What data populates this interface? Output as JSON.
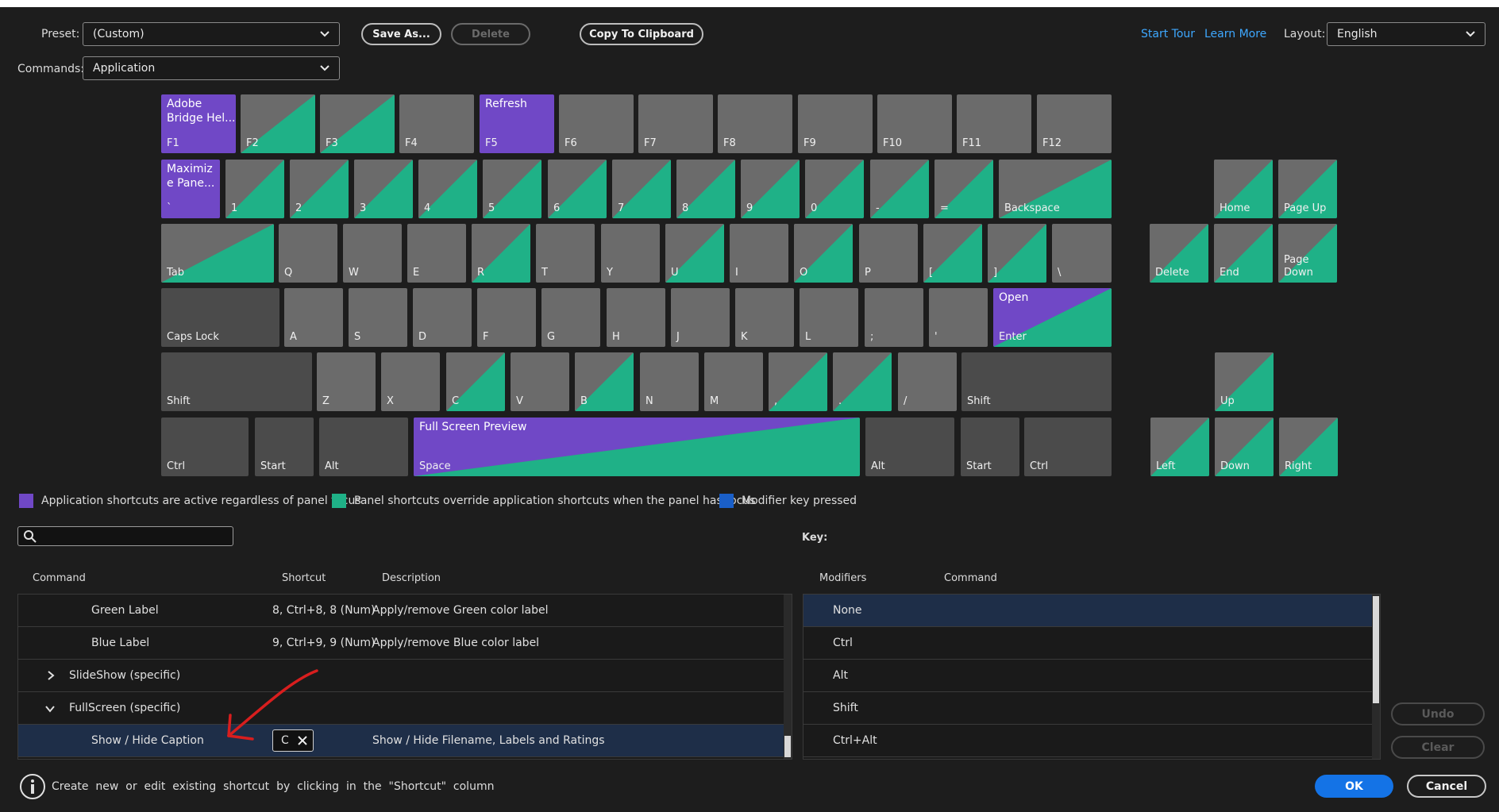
{
  "header": {
    "preset_label": "Preset:",
    "preset_value": "(Custom)",
    "save_as": "Save As...",
    "delete": "Delete",
    "copy_clipboard": "Copy To Clipboard",
    "commands_label": "Commands:",
    "commands_value": "Application",
    "start_tour": "Start Tour",
    "learn_more": "Learn More",
    "layout_label": "Layout:",
    "layout_value": "English"
  },
  "colors": {
    "app": "#7048c6",
    "panel": "#1fb187",
    "key": "#6b6b6b",
    "key_dark": "#4b4b4b",
    "modifier": "#1a5fc8",
    "link": "#3ea8ff",
    "ok": "#1473e6"
  },
  "keys": [
    {
      "name": "f1",
      "label": "F1",
      "top": "Adobe\nBridge Hel...",
      "state": "app"
    },
    {
      "name": "f2",
      "label": "F2",
      "state": "panel"
    },
    {
      "name": "f3",
      "label": "F3",
      "state": "panel"
    },
    {
      "name": "f4",
      "label": "F4",
      "state": "plain"
    },
    {
      "name": "f5",
      "label": "F5",
      "top": "Refresh",
      "state": "app"
    },
    {
      "name": "f6",
      "label": "F6",
      "state": "plain"
    },
    {
      "name": "f7",
      "label": "F7",
      "state": "plain"
    },
    {
      "name": "f8",
      "label": "F8",
      "state": "plain"
    },
    {
      "name": "f9",
      "label": "F9",
      "state": "plain"
    },
    {
      "name": "f10",
      "label": "F10",
      "state": "plain"
    },
    {
      "name": "f11",
      "label": "F11",
      "state": "plain"
    },
    {
      "name": "f12",
      "label": "F12",
      "state": "plain"
    },
    {
      "name": "backtick",
      "label": "`",
      "top": "Maximiz\ne Pane...",
      "state": "app"
    },
    {
      "name": "1",
      "label": "1",
      "state": "panel"
    },
    {
      "name": "2",
      "label": "2",
      "state": "panel"
    },
    {
      "name": "3",
      "label": "3",
      "state": "panel"
    },
    {
      "name": "4",
      "label": "4",
      "state": "panel"
    },
    {
      "name": "5",
      "label": "5",
      "state": "panel"
    },
    {
      "name": "6",
      "label": "6",
      "state": "panel"
    },
    {
      "name": "7",
      "label": "7",
      "state": "panel"
    },
    {
      "name": "8",
      "label": "8",
      "state": "panel"
    },
    {
      "name": "9",
      "label": "9",
      "state": "panel"
    },
    {
      "name": "0",
      "label": "0",
      "state": "panel"
    },
    {
      "name": "minus",
      "label": "-",
      "state": "panel"
    },
    {
      "name": "equals",
      "label": "=",
      "state": "panel"
    },
    {
      "name": "backspace",
      "label": "Backspace",
      "state": "panel"
    },
    {
      "name": "home",
      "label": "Home",
      "state": "panel"
    },
    {
      "name": "pageup",
      "label": "Page Up",
      "state": "panel"
    },
    {
      "name": "tab",
      "label": "Tab",
      "state": "panel"
    },
    {
      "name": "q",
      "label": "Q",
      "state": "plain"
    },
    {
      "name": "w",
      "label": "W",
      "state": "plain"
    },
    {
      "name": "e",
      "label": "E",
      "state": "plain"
    },
    {
      "name": "r",
      "label": "R",
      "state": "panel"
    },
    {
      "name": "t",
      "label": "T",
      "state": "plain"
    },
    {
      "name": "y",
      "label": "Y",
      "state": "plain"
    },
    {
      "name": "u",
      "label": "U",
      "state": "panel"
    },
    {
      "name": "i",
      "label": "I",
      "state": "plain"
    },
    {
      "name": "o",
      "label": "O",
      "state": "panel"
    },
    {
      "name": "p",
      "label": "P",
      "state": "plain"
    },
    {
      "name": "lbracket",
      "label": "[",
      "state": "panel"
    },
    {
      "name": "rbracket",
      "label": "]",
      "state": "panel"
    },
    {
      "name": "backslash",
      "label": "\\",
      "state": "plain"
    },
    {
      "name": "delete",
      "label": "Delete",
      "state": "panel"
    },
    {
      "name": "end",
      "label": "End",
      "state": "panel"
    },
    {
      "name": "pagedown",
      "label": "Page\nDown",
      "state": "panel"
    },
    {
      "name": "capslock",
      "label": "Caps Lock",
      "state": "dark"
    },
    {
      "name": "a",
      "label": "A",
      "state": "plain"
    },
    {
      "name": "s",
      "label": "S",
      "state": "plain"
    },
    {
      "name": "d",
      "label": "D",
      "state": "plain"
    },
    {
      "name": "f",
      "label": "F",
      "state": "plain"
    },
    {
      "name": "g",
      "label": "G",
      "state": "plain"
    },
    {
      "name": "h",
      "label": "H",
      "state": "plain"
    },
    {
      "name": "j",
      "label": "J",
      "state": "plain"
    },
    {
      "name": "k",
      "label": "K",
      "state": "plain"
    },
    {
      "name": "l",
      "label": "L",
      "state": "plain"
    },
    {
      "name": "semicolon",
      "label": ";",
      "state": "plain"
    },
    {
      "name": "quote",
      "label": "'",
      "state": "plain"
    },
    {
      "name": "enter",
      "label": "Enter",
      "top": "Open",
      "state": "both"
    },
    {
      "name": "lshift",
      "label": "Shift",
      "state": "dark"
    },
    {
      "name": "z",
      "label": "Z",
      "state": "plain"
    },
    {
      "name": "x",
      "label": "X",
      "state": "plain"
    },
    {
      "name": "c",
      "label": "C",
      "state": "panel"
    },
    {
      "name": "v",
      "label": "V",
      "state": "plain"
    },
    {
      "name": "b",
      "label": "B",
      "state": "panel"
    },
    {
      "name": "n",
      "label": "N",
      "state": "plain"
    },
    {
      "name": "m",
      "label": "M",
      "state": "plain"
    },
    {
      "name": "comma",
      "label": ",",
      "state": "panel"
    },
    {
      "name": "period",
      "label": ".",
      "state": "panel"
    },
    {
      "name": "slash",
      "label": "/",
      "state": "plain"
    },
    {
      "name": "rshift",
      "label": "Shift",
      "state": "dark"
    },
    {
      "name": "up",
      "label": "Up",
      "state": "panel"
    },
    {
      "name": "lctrl",
      "label": "Ctrl",
      "state": "dark"
    },
    {
      "name": "lstart",
      "label": "Start",
      "state": "dark"
    },
    {
      "name": "lalt",
      "label": "Alt",
      "state": "dark"
    },
    {
      "name": "space",
      "label": "Space",
      "top": "Full Screen Preview",
      "state": "both"
    },
    {
      "name": "ralt",
      "label": "Alt",
      "state": "dark"
    },
    {
      "name": "rstart",
      "label": "Start",
      "state": "dark"
    },
    {
      "name": "rctrl",
      "label": "Ctrl",
      "state": "dark"
    },
    {
      "name": "left",
      "label": "Left",
      "state": "panel"
    },
    {
      "name": "down",
      "label": "Down",
      "state": "panel"
    },
    {
      "name": "right",
      "label": "Right",
      "state": "panel"
    }
  ],
  "legend": {
    "app": "Application shortcuts are active regardless of panel focus",
    "panel": "Panel shortcuts override application shortcuts when the panel has focus",
    "modifier": "Modifier key pressed"
  },
  "search": {
    "placeholder": ""
  },
  "key_label": "Key:",
  "commands_table": {
    "headers": [
      "Command",
      "Shortcut",
      "Description"
    ],
    "rows": [
      {
        "command": "Green Label",
        "shortcut": "8, Ctrl+8, 8 (Num)",
        "description": "Apply/remove Green color label"
      },
      {
        "command": "Blue Label",
        "shortcut": "9, Ctrl+9, 9 (Num)",
        "description": "Apply/remove Blue color label"
      },
      {
        "command": "SlideShow (specific)",
        "shortcut": "",
        "description": "",
        "group": true
      },
      {
        "command": "FullScreen (specific)",
        "shortcut": "",
        "description": "",
        "group": true
      },
      {
        "command": "Show / Hide Caption",
        "shortcut": "C",
        "description": "Show / Hide Filename, Labels and Ratings"
      }
    ]
  },
  "modifiers_table": {
    "headers": [
      "Modifiers",
      "Command"
    ],
    "rows": [
      "None",
      "Ctrl",
      "Alt",
      "Shift",
      "Ctrl+Alt"
    ]
  },
  "buttons": {
    "undo": "Undo",
    "clear": "Clear",
    "ok": "OK",
    "cancel": "Cancel"
  },
  "hint": "Create  new  or  edit  existing  shortcut  by  clicking  in  the  \"Shortcut\"  column"
}
